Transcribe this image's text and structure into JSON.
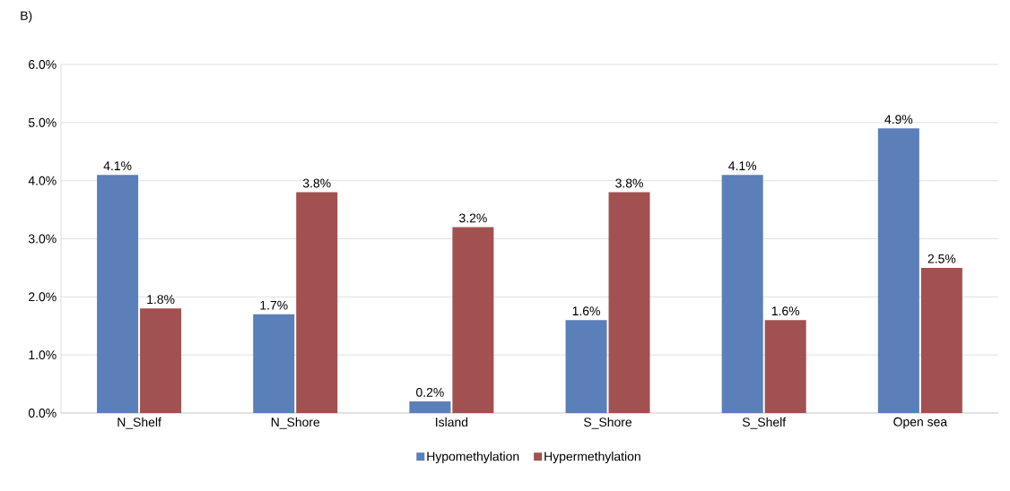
{
  "chart_data": {
    "type": "bar",
    "title": "B)",
    "categories": [
      "N_Shelf",
      "N_Shore",
      "Island",
      "S_Shore",
      "S_Shelf",
      "Open sea"
    ],
    "series": [
      {
        "name": "Hypomethylation",
        "color": "#5b7fb8",
        "values": [
          4.1,
          1.7,
          0.2,
          1.6,
          4.1,
          4.9
        ],
        "value_labels": [
          "4.1%",
          "1.7%",
          "0.2%",
          "1.6%",
          "4.1%",
          "4.9%"
        ]
      },
      {
        "name": "Hypermethylation",
        "color": "#a15150",
        "values": [
          1.8,
          3.8,
          3.2,
          3.8,
          1.6,
          2.5
        ],
        "value_labels": [
          "1.8%",
          "3.8%",
          "3.2%",
          "3.8%",
          "1.6%",
          "2.5%"
        ]
      }
    ],
    "ylim": [
      0,
      6
    ],
    "yticks": [
      {
        "value": 0,
        "label": "0.0%"
      },
      {
        "value": 1,
        "label": "1.0%"
      },
      {
        "value": 2,
        "label": "2.0%"
      },
      {
        "value": 3,
        "label": "3.0%"
      },
      {
        "value": 4,
        "label": "4.0%"
      },
      {
        "value": 5,
        "label": "5.0%"
      },
      {
        "value": 6,
        "label": "6.0%"
      }
    ],
    "grid": "y",
    "legend": "bottom"
  }
}
